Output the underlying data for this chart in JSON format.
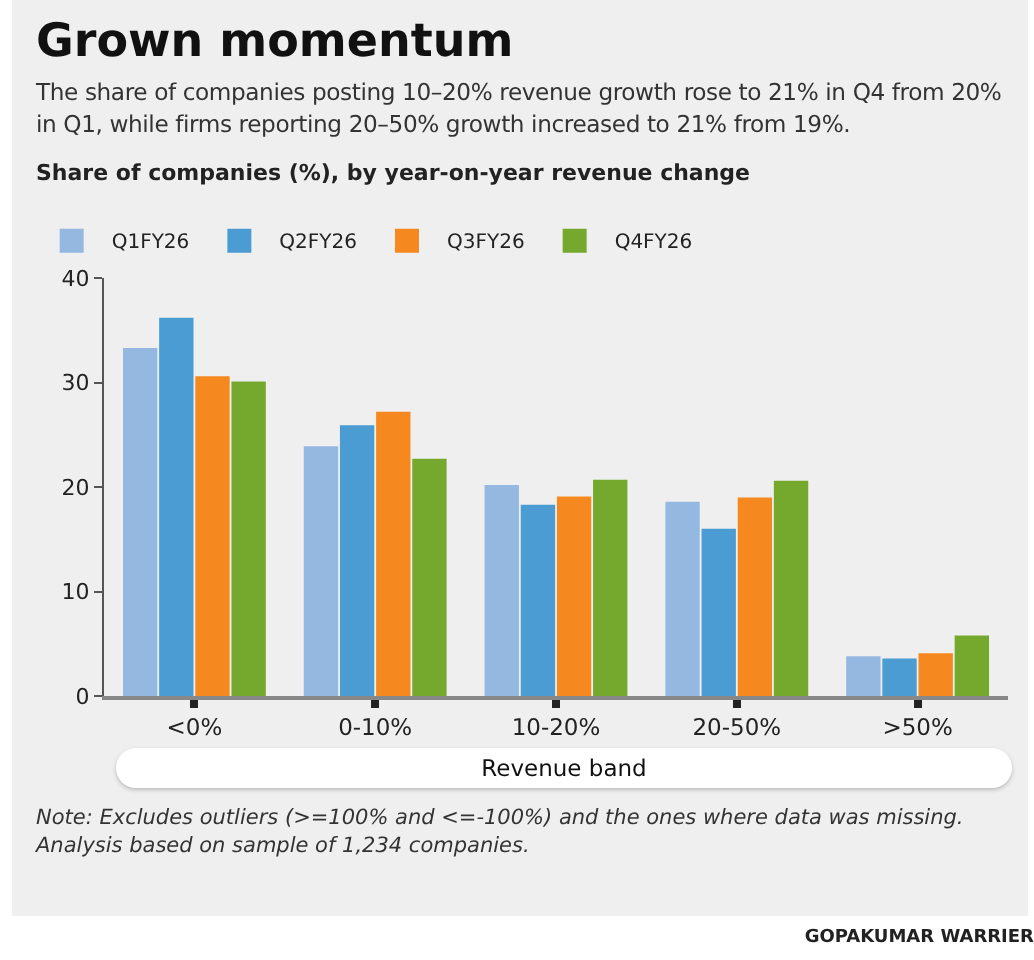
{
  "chart_data": {
    "type": "bar",
    "title": "Grown momentum",
    "subtitle": "The share of companies posting 10–20% revenue growth rose to 21% in Q4 from 20% in Q1, while firms reporting 20–50% growth increased to 21% from 19%.",
    "ylabel": "Share of companies (%), by year-on-year revenue change",
    "xlabel": "Revenue band",
    "categories": [
      "<0%",
      "0-10%",
      "10-20%",
      "20-50%",
      ">50%"
    ],
    "series": [
      {
        "name": "Q1FY26",
        "color": "#94b8e0",
        "values": [
          33.3,
          23.9,
          20.2,
          18.6,
          3.8
        ]
      },
      {
        "name": "Q2FY26",
        "color": "#4b9cd3",
        "values": [
          36.2,
          25.9,
          18.3,
          16.0,
          3.6
        ]
      },
      {
        "name": "Q3FY26",
        "color": "#f5891f",
        "values": [
          30.6,
          27.2,
          19.1,
          19.0,
          4.1
        ]
      },
      {
        "name": "Q4FY26",
        "color": "#74a92e",
        "values": [
          30.1,
          22.7,
          20.7,
          20.6,
          5.8
        ]
      }
    ],
    "ylim": [
      0,
      40
    ],
    "yticks": [
      0,
      10,
      20,
      30,
      40
    ],
    "legend": "top left",
    "annotations": [
      "Note: Excludes outliers (>=100% and <=-100%) and the ones where data was missing. Analysis based on sample of 1,234 companies.",
      "GOPAKUMAR WARRIER"
    ]
  }
}
